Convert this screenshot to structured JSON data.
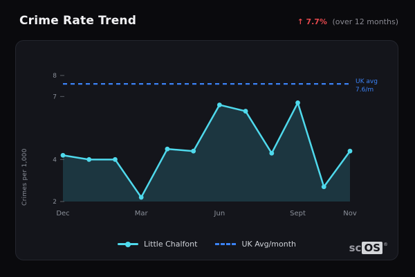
{
  "header": {
    "title": "Crime Rate Trend",
    "delta_arrow": "↑",
    "delta_value": "7.7%",
    "delta_note": "(over 12 months)"
  },
  "chart_data": {
    "type": "line",
    "title": "Crime Rate Trend",
    "ylabel": "Crimes per 1,000",
    "ylim": [
      2,
      8
    ],
    "yticks": [
      8,
      7,
      4,
      2
    ],
    "x_ticks": [
      {
        "index": 0,
        "label": "Dec"
      },
      {
        "index": 3,
        "label": "Mar"
      },
      {
        "index": 6,
        "label": "Jun"
      },
      {
        "index": 9,
        "label": "Sept"
      },
      {
        "index": 11,
        "label": "Nov"
      }
    ],
    "series": [
      {
        "name": "Little Chalfont",
        "values": [
          4.2,
          4.0,
          4.0,
          2.2,
          4.5,
          4.4,
          6.6,
          6.3,
          4.3,
          6.7,
          2.7,
          4.4
        ]
      }
    ],
    "reference_line": {
      "name": "UK Avg/month",
      "value": 7.6,
      "label_lines": [
        "UK avg",
        "7.6/m"
      ]
    },
    "grid": false,
    "legend_position": "bottom"
  },
  "legend": {
    "items": [
      {
        "label": "Little Chalfont",
        "style": "solid"
      },
      {
        "label": "UK Avg/month",
        "style": "dashed"
      }
    ]
  },
  "logo": {
    "prefix": "sc",
    "os": "OS",
    "reg": "®"
  },
  "colors": {
    "line": "#4fd9ec",
    "area": "#1f4450",
    "reference": "#3b82f6",
    "tick_text": "#8b909a",
    "delta": "#e5484d",
    "card_bg": "#14151b",
    "page_bg": "#0a0a0d"
  }
}
